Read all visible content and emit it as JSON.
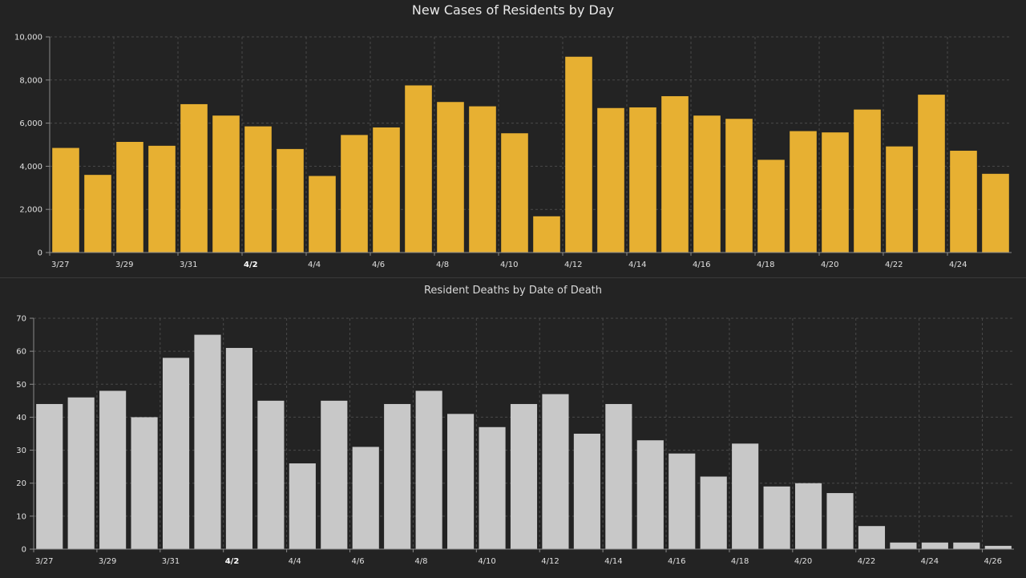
{
  "chart_data": [
    {
      "type": "bar",
      "title": "New Cases of Residents by Day",
      "xlabel": "",
      "ylabel": "",
      "ylim": [
        0,
        10000
      ],
      "yticks": [
        "0",
        "2,000",
        "4,000",
        "6,000",
        "8,000",
        "10,000"
      ],
      "ytick_values": [
        0,
        2000,
        4000,
        6000,
        8000,
        10000
      ],
      "categories": [
        "3/27",
        "3/28",
        "3/29",
        "3/30",
        "3/31",
        "4/1",
        "4/2",
        "4/3",
        "4/4",
        "4/5",
        "4/6",
        "4/7",
        "4/8",
        "4/9",
        "4/10",
        "4/11",
        "4/12",
        "4/13",
        "4/14",
        "4/15",
        "4/16",
        "4/17",
        "4/18",
        "4/19",
        "4/20",
        "4/21",
        "4/22",
        "4/23",
        "4/24",
        "4/25"
      ],
      "xtick_labels": [
        "3/27",
        "3/29",
        "3/31",
        "4/2",
        "4/4",
        "4/6",
        "4/8",
        "4/10",
        "4/12",
        "4/14",
        "4/16",
        "4/18",
        "4/20",
        "4/22",
        "4/24"
      ],
      "bold_xtick": "4/2",
      "values": [
        4850,
        3600,
        5130,
        4950,
        6880,
        6350,
        5850,
        4800,
        3550,
        5450,
        5800,
        7750,
        6980,
        6780,
        5530,
        1680,
        9080,
        6700,
        6730,
        7250,
        6350,
        6200,
        4300,
        5630,
        5570,
        6630,
        4920,
        7320,
        4720,
        3650
      ],
      "bar_color": "#e7b032",
      "grid": true,
      "legend": "none"
    },
    {
      "type": "bar",
      "title": "Resident Deaths by Date of Death",
      "xlabel": "",
      "ylabel": "",
      "ylim": [
        0,
        70
      ],
      "yticks": [
        "0",
        "10",
        "20",
        "30",
        "40",
        "50",
        "60",
        "70"
      ],
      "ytick_values": [
        0,
        10,
        20,
        30,
        40,
        50,
        60,
        70
      ],
      "categories": [
        "3/27",
        "3/28",
        "3/29",
        "3/30",
        "3/31",
        "4/1",
        "4/2",
        "4/3",
        "4/4",
        "4/5",
        "4/6",
        "4/7",
        "4/8",
        "4/9",
        "4/10",
        "4/11",
        "4/12",
        "4/13",
        "4/14",
        "4/15",
        "4/16",
        "4/17",
        "4/18",
        "4/19",
        "4/20",
        "4/21",
        "4/22",
        "4/23",
        "4/24",
        "4/25",
        "4/26"
      ],
      "xtick_labels": [
        "3/27",
        "3/29",
        "3/31",
        "4/2",
        "4/4",
        "4/6",
        "4/8",
        "4/10",
        "4/12",
        "4/14",
        "4/16",
        "4/18",
        "4/20",
        "4/22",
        "4/24",
        "4/26"
      ],
      "bold_xtick": "4/2",
      "values": [
        44,
        46,
        48,
        40,
        58,
        65,
        61,
        45,
        26,
        45,
        31,
        44,
        48,
        41,
        37,
        44,
        47,
        35,
        44,
        33,
        29,
        22,
        32,
        19,
        20,
        17,
        7,
        2,
        2,
        2,
        1
      ],
      "bar_color": "#c8c8c8",
      "grid": true,
      "legend": "none"
    }
  ]
}
